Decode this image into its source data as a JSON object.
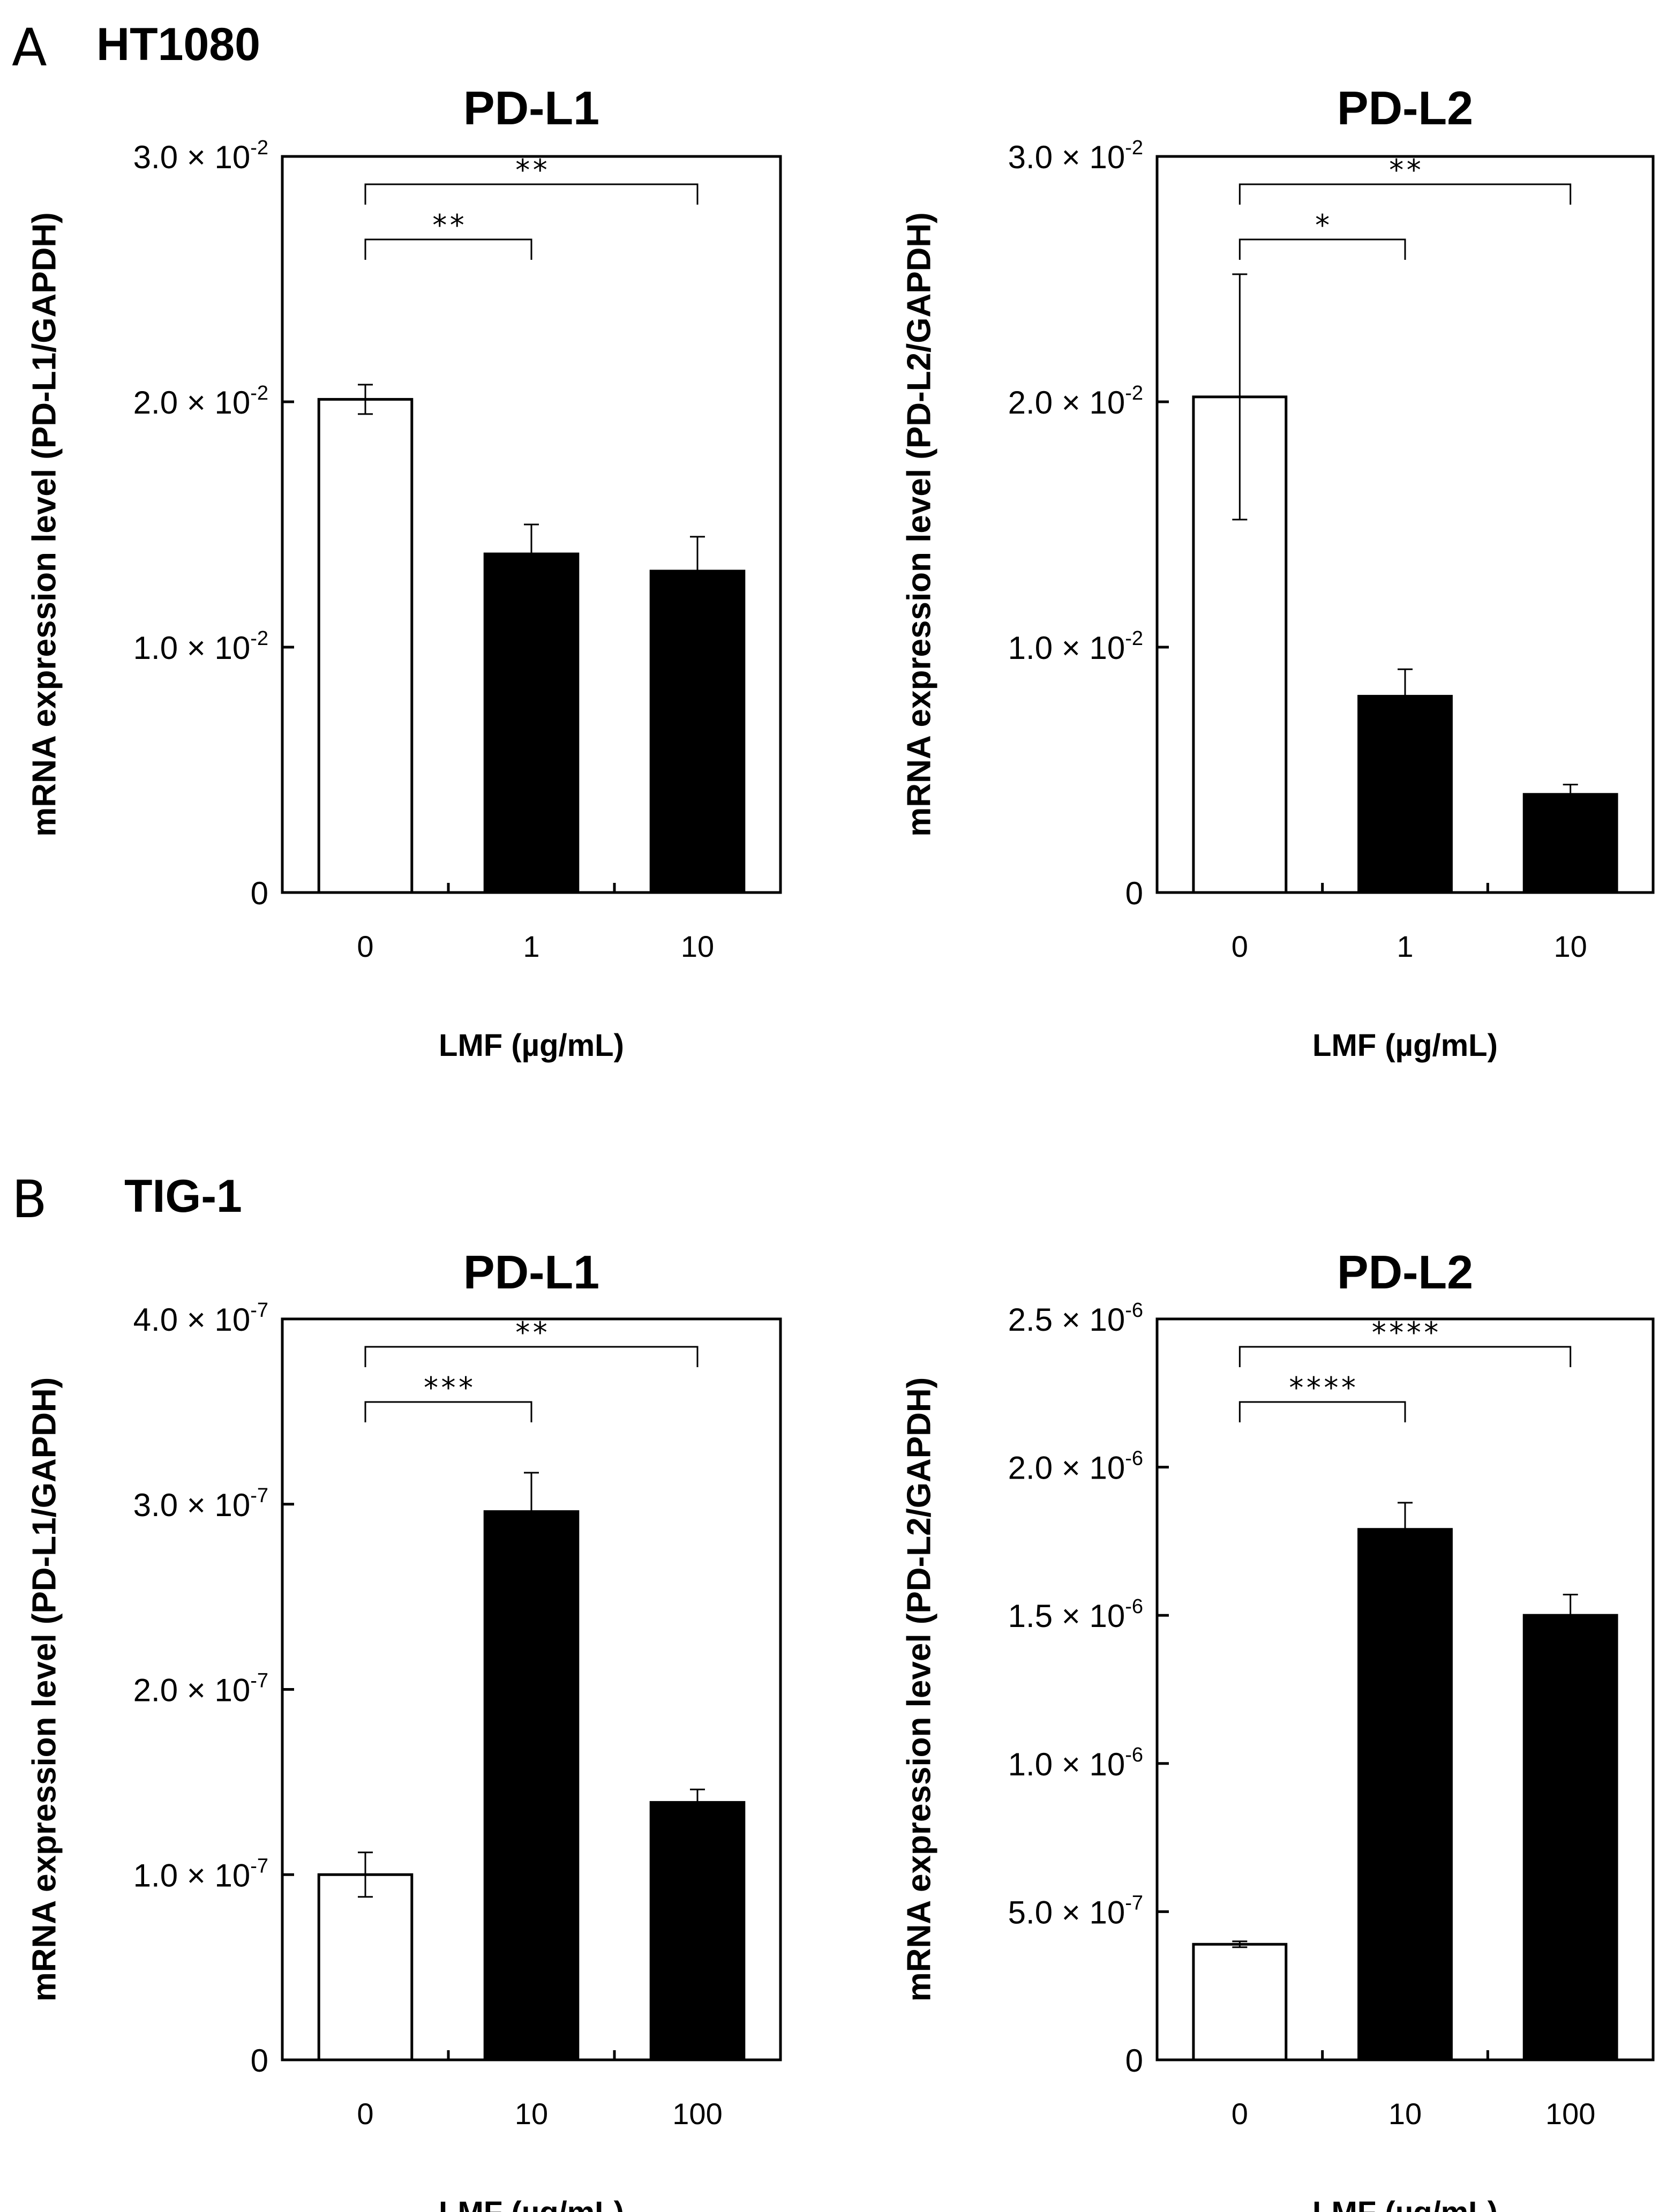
{
  "panels": [
    {
      "letter": "A",
      "cell_line": "HT1080"
    },
    {
      "letter": "B",
      "cell_line": "TIG-1"
    }
  ],
  "chart_data": [
    {
      "type": "bar",
      "panel": "A",
      "title": "PD-L1",
      "xlabel": "LMF (µg/mL)",
      "ylabel": "mRNA expression level (PD-L1/GAPDH)",
      "categories": [
        "0",
        "1",
        "10"
      ],
      "values": [
        0.0201,
        0.0138,
        0.0131
      ],
      "errors": [
        0.0006,
        0.0012,
        0.0014
      ],
      "bar_colors": [
        "#ffffff",
        "#000000",
        "#000000"
      ],
      "ylim": [
        0,
        0.03
      ],
      "yticks": [
        {
          "value": 0,
          "mantissa": "0",
          "exponent": ""
        },
        {
          "value": 0.01,
          "mantissa": "1.0 × 10",
          "exponent": "-2"
        },
        {
          "value": 0.02,
          "mantissa": "2.0 × 10",
          "exponent": "-2"
        },
        {
          "value": 0.03,
          "mantissa": "3.0 × 10",
          "exponent": "-2"
        }
      ],
      "significance": [
        {
          "from": 0,
          "to": 1,
          "label": "**"
        },
        {
          "from": 0,
          "to": 2,
          "label": "**"
        }
      ]
    },
    {
      "type": "bar",
      "panel": "A",
      "title": "PD-L2",
      "xlabel": "LMF (µg/mL)",
      "ylabel": "mRNA expression level (PD-L2/GAPDH)",
      "categories": [
        "0",
        "1",
        "10"
      ],
      "values": [
        0.0202,
        0.008,
        0.004
      ],
      "errors": [
        0.005,
        0.0011,
        0.0004
      ],
      "bar_colors": [
        "#ffffff",
        "#000000",
        "#000000"
      ],
      "ylim": [
        0,
        0.03
      ],
      "yticks": [
        {
          "value": 0,
          "mantissa": "0",
          "exponent": ""
        },
        {
          "value": 0.01,
          "mantissa": "1.0 × 10",
          "exponent": "-2"
        },
        {
          "value": 0.02,
          "mantissa": "2.0 × 10",
          "exponent": "-2"
        },
        {
          "value": 0.03,
          "mantissa": "3.0 × 10",
          "exponent": "-2"
        }
      ],
      "significance": [
        {
          "from": 0,
          "to": 1,
          "label": "*"
        },
        {
          "from": 0,
          "to": 2,
          "label": "**"
        }
      ]
    },
    {
      "type": "bar",
      "panel": "B",
      "title": "PD-L1",
      "xlabel": "LMF (µg/mL)",
      "ylabel": "mRNA expression level (PD-L1/GAPDH)",
      "categories": [
        "0",
        "10",
        "100"
      ],
      "values": [
        1e-07,
        2.96e-07,
        1.39e-07
      ],
      "errors": [
        1.2e-08,
        2.1e-08,
        7e-09
      ],
      "bar_colors": [
        "#ffffff",
        "#000000",
        "#000000"
      ],
      "ylim": [
        0,
        4e-07
      ],
      "yticks": [
        {
          "value": 0,
          "mantissa": "0",
          "exponent": ""
        },
        {
          "value": 1e-07,
          "mantissa": "1.0 × 10",
          "exponent": "-7"
        },
        {
          "value": 2e-07,
          "mantissa": "2.0 × 10",
          "exponent": "-7"
        },
        {
          "value": 3e-07,
          "mantissa": "3.0 × 10",
          "exponent": "-7"
        },
        {
          "value": 4e-07,
          "mantissa": "4.0 × 10",
          "exponent": "-7"
        }
      ],
      "significance": [
        {
          "from": 0,
          "to": 1,
          "label": "***"
        },
        {
          "from": 0,
          "to": 2,
          "label": "**"
        }
      ]
    },
    {
      "type": "bar",
      "panel": "B",
      "title": "PD-L2",
      "xlabel": "LMF (µg/mL)",
      "ylabel": "mRNA expression level (PD-L2/GAPDH)",
      "categories": [
        "0",
        "10",
        "100"
      ],
      "values": [
        3.9e-07,
        1.79e-06,
        1.5e-06
      ],
      "errors": [
        1e-08,
        9e-08,
        7e-08
      ],
      "bar_colors": [
        "#ffffff",
        "#000000",
        "#000000"
      ],
      "ylim": [
        0,
        2.5e-06
      ],
      "yticks": [
        {
          "value": 0,
          "mantissa": "0",
          "exponent": ""
        },
        {
          "value": 5e-07,
          "mantissa": "5.0 × 10",
          "exponent": "-7"
        },
        {
          "value": 1e-06,
          "mantissa": "1.0 × 10",
          "exponent": "-6"
        },
        {
          "value": 1.5e-06,
          "mantissa": "1.5 × 10",
          "exponent": "-6"
        },
        {
          "value": 2e-06,
          "mantissa": "2.0 × 10",
          "exponent": "-6"
        },
        {
          "value": 2.5e-06,
          "mantissa": "2.5 × 10",
          "exponent": "-6"
        }
      ],
      "significance": [
        {
          "from": 0,
          "to": 1,
          "label": "****"
        },
        {
          "from": 0,
          "to": 2,
          "label": "****"
        }
      ]
    }
  ]
}
